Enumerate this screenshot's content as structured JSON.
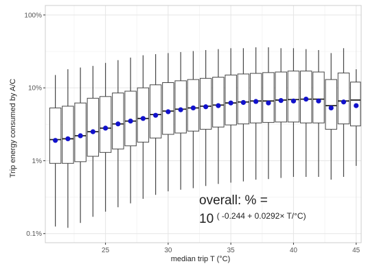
{
  "chart_data": {
    "type": "box",
    "xlabel": "median trip T (°C)",
    "ylabel": "Trip energy consumed by A/C",
    "x_ticks": [
      25,
      30,
      35,
      40,
      45
    ],
    "y_scale": "log",
    "y_ticks": [
      {
        "value": 0.1,
        "label": "0.1%"
      },
      {
        "value": 1,
        "label": "1%"
      },
      {
        "value": 10,
        "label": "10%"
      },
      {
        "value": 100,
        "label": "100%"
      }
    ],
    "xlim": [
      20.2,
      45.4
    ],
    "ylim": [
      0.075,
      135
    ],
    "grid": true,
    "boxes": [
      {
        "x": 21,
        "low": 0.125,
        "q1": 0.92,
        "median": 1.95,
        "q3": 5.3,
        "high": 15
      },
      {
        "x": 22,
        "low": 0.12,
        "q1": 0.92,
        "median": 2.0,
        "q3": 5.6,
        "high": 18
      },
      {
        "x": 23,
        "low": 0.14,
        "q1": 0.97,
        "median": 2.2,
        "q3": 6.2,
        "high": 19
      },
      {
        "x": 24,
        "low": 0.17,
        "q1": 1.15,
        "median": 2.5,
        "q3": 7.2,
        "high": 20
      },
      {
        "x": 25,
        "low": 0.2,
        "q1": 1.3,
        "median": 2.8,
        "q3": 7.6,
        "high": 22
      },
      {
        "x": 26,
        "low": 0.23,
        "q1": 1.45,
        "median": 3.2,
        "q3": 8.5,
        "high": 24
      },
      {
        "x": 27,
        "low": 0.26,
        "q1": 1.6,
        "median": 3.5,
        "q3": 9.0,
        "high": 26
      },
      {
        "x": 28,
        "low": 0.3,
        "q1": 1.8,
        "median": 3.8,
        "q3": 10.0,
        "high": 28
      },
      {
        "x": 29,
        "low": 0.34,
        "q1": 2.05,
        "median": 4.3,
        "q3": 11.0,
        "high": 29
      },
      {
        "x": 30,
        "low": 0.38,
        "q1": 2.3,
        "median": 4.8,
        "q3": 11.8,
        "high": 30
      },
      {
        "x": 31,
        "low": 0.4,
        "q1": 2.4,
        "median": 5.1,
        "q3": 12.5,
        "high": 31
      },
      {
        "x": 32,
        "low": 0.42,
        "q1": 2.55,
        "median": 5.3,
        "q3": 13.0,
        "high": 32
      },
      {
        "x": 33,
        "low": 0.45,
        "q1": 2.7,
        "median": 5.6,
        "q3": 13.5,
        "high": 33
      },
      {
        "x": 34,
        "low": 0.48,
        "q1": 2.9,
        "median": 5.8,
        "q3": 14.0,
        "high": 34
      },
      {
        "x": 35,
        "low": 0.5,
        "q1": 3.1,
        "median": 6.2,
        "q3": 15.0,
        "high": 35
      },
      {
        "x": 36,
        "low": 0.52,
        "q1": 3.2,
        "median": 6.4,
        "q3": 15.5,
        "high": 35
      },
      {
        "x": 37,
        "low": 0.55,
        "q1": 3.3,
        "median": 6.6,
        "q3": 15.8,
        "high": 36
      },
      {
        "x": 38,
        "low": 0.56,
        "q1": 3.35,
        "median": 6.6,
        "q3": 16.2,
        "high": 36
      },
      {
        "x": 39,
        "low": 0.58,
        "q1": 3.4,
        "median": 6.8,
        "q3": 16.5,
        "high": 35
      },
      {
        "x": 40,
        "low": 0.6,
        "q1": 3.4,
        "median": 6.9,
        "q3": 17.0,
        "high": 35
      },
      {
        "x": 41,
        "low": 0.6,
        "q1": 3.3,
        "median": 7.0,
        "q3": 17.0,
        "high": 34
      },
      {
        "x": 42,
        "low": 0.6,
        "q1": 3.3,
        "median": 7.0,
        "q3": 16.5,
        "high": 33
      },
      {
        "x": 43,
        "low": 0.55,
        "q1": 2.7,
        "median": 5.7,
        "q3": 13.0,
        "high": 30
      },
      {
        "x": 44,
        "low": 0.6,
        "q1": 3.2,
        "median": 6.6,
        "q3": 16.0,
        "high": 35
      },
      {
        "x": 45,
        "low": 0.85,
        "q1": 3.0,
        "median": 6.8,
        "q3": 12.0,
        "high": 18
      }
    ],
    "points": [
      {
        "x": 21,
        "y": 1.9
      },
      {
        "x": 22,
        "y": 2.0
      },
      {
        "x": 23,
        "y": 2.2
      },
      {
        "x": 24,
        "y": 2.5
      },
      {
        "x": 25,
        "y": 2.8
      },
      {
        "x": 26,
        "y": 3.2
      },
      {
        "x": 27,
        "y": 3.5
      },
      {
        "x": 28,
        "y": 3.8
      },
      {
        "x": 29,
        "y": 4.2
      },
      {
        "x": 30,
        "y": 4.7
      },
      {
        "x": 31,
        "y": 5.0
      },
      {
        "x": 32,
        "y": 5.3
      },
      {
        "x": 33,
        "y": 5.5
      },
      {
        "x": 34,
        "y": 5.7
      },
      {
        "x": 35,
        "y": 6.2
      },
      {
        "x": 36,
        "y": 6.3
      },
      {
        "x": 37,
        "y": 6.5
      },
      {
        "x": 38,
        "y": 6.2
      },
      {
        "x": 39,
        "y": 6.7
      },
      {
        "x": 40,
        "y": 6.6
      },
      {
        "x": 41,
        "y": 7.0
      },
      {
        "x": 42,
        "y": 6.6
      },
      {
        "x": 43,
        "y": 5.3
      },
      {
        "x": 44,
        "y": 6.4
      },
      {
        "x": 45,
        "y": 5.7
      }
    ],
    "fit": {
      "intercept": -0.244,
      "slope": 0.0292,
      "x_from": 21,
      "x_to": 45.4
    },
    "annotation": {
      "line1": "overall: % =",
      "base": "10",
      "exponent": "( -0.244 + 0.0292× T/°C)"
    },
    "colors": {
      "box": "#444444",
      "points": "#1212cc",
      "fit_line": "#1a2bd9",
      "panel_border": "#cccccc",
      "grid_major": "#e5e5e5",
      "grid_minor": "#f2f2f2"
    }
  }
}
